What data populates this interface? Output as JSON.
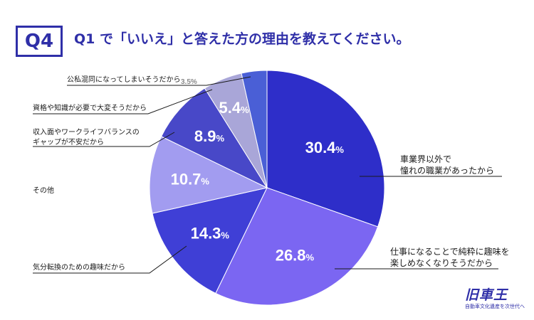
{
  "header": {
    "badge": "Q4",
    "title": "Q1 で「いいえ」と答えた方の理由を教えてください。"
  },
  "chart_data": {
    "type": "pie",
    "start_angle_deg": 0,
    "direction": "clockwise",
    "slices": [
      {
        "label": "車業界以外で\n憧れの職業があったから",
        "value": 30.4,
        "color": "#2e2ec9"
      },
      {
        "label": "仕事になることで純粋に趣味を\n楽しめなくなりそうだから",
        "value": 26.8,
        "color": "#7b66f2"
      },
      {
        "label": "気分転換のための趣味だから",
        "value": 14.3,
        "color": "#3f3fd6"
      },
      {
        "label": "その他",
        "value": 10.7,
        "color": "#a29cf0"
      },
      {
        "label": "収入面やワークライフバランスの\nギャップが不安だから",
        "value": 8.9,
        "color": "#4848c8"
      },
      {
        "label": "資格や知識が必要で大変そうだから",
        "value": 5.4,
        "color": "#a9a6d8"
      },
      {
        "label": "公私混同になってしまいそうだから",
        "value": 3.5,
        "color": "#4a5fd6"
      }
    ],
    "value_labels": [
      "30.4%",
      "26.8%",
      "14.3%",
      "10.7%",
      "8.9%",
      "5.4%",
      "3.5%"
    ]
  },
  "branding": {
    "logo_text": "旧車王",
    "logo_tagline": "自動車文化遺産を次世代へ"
  }
}
